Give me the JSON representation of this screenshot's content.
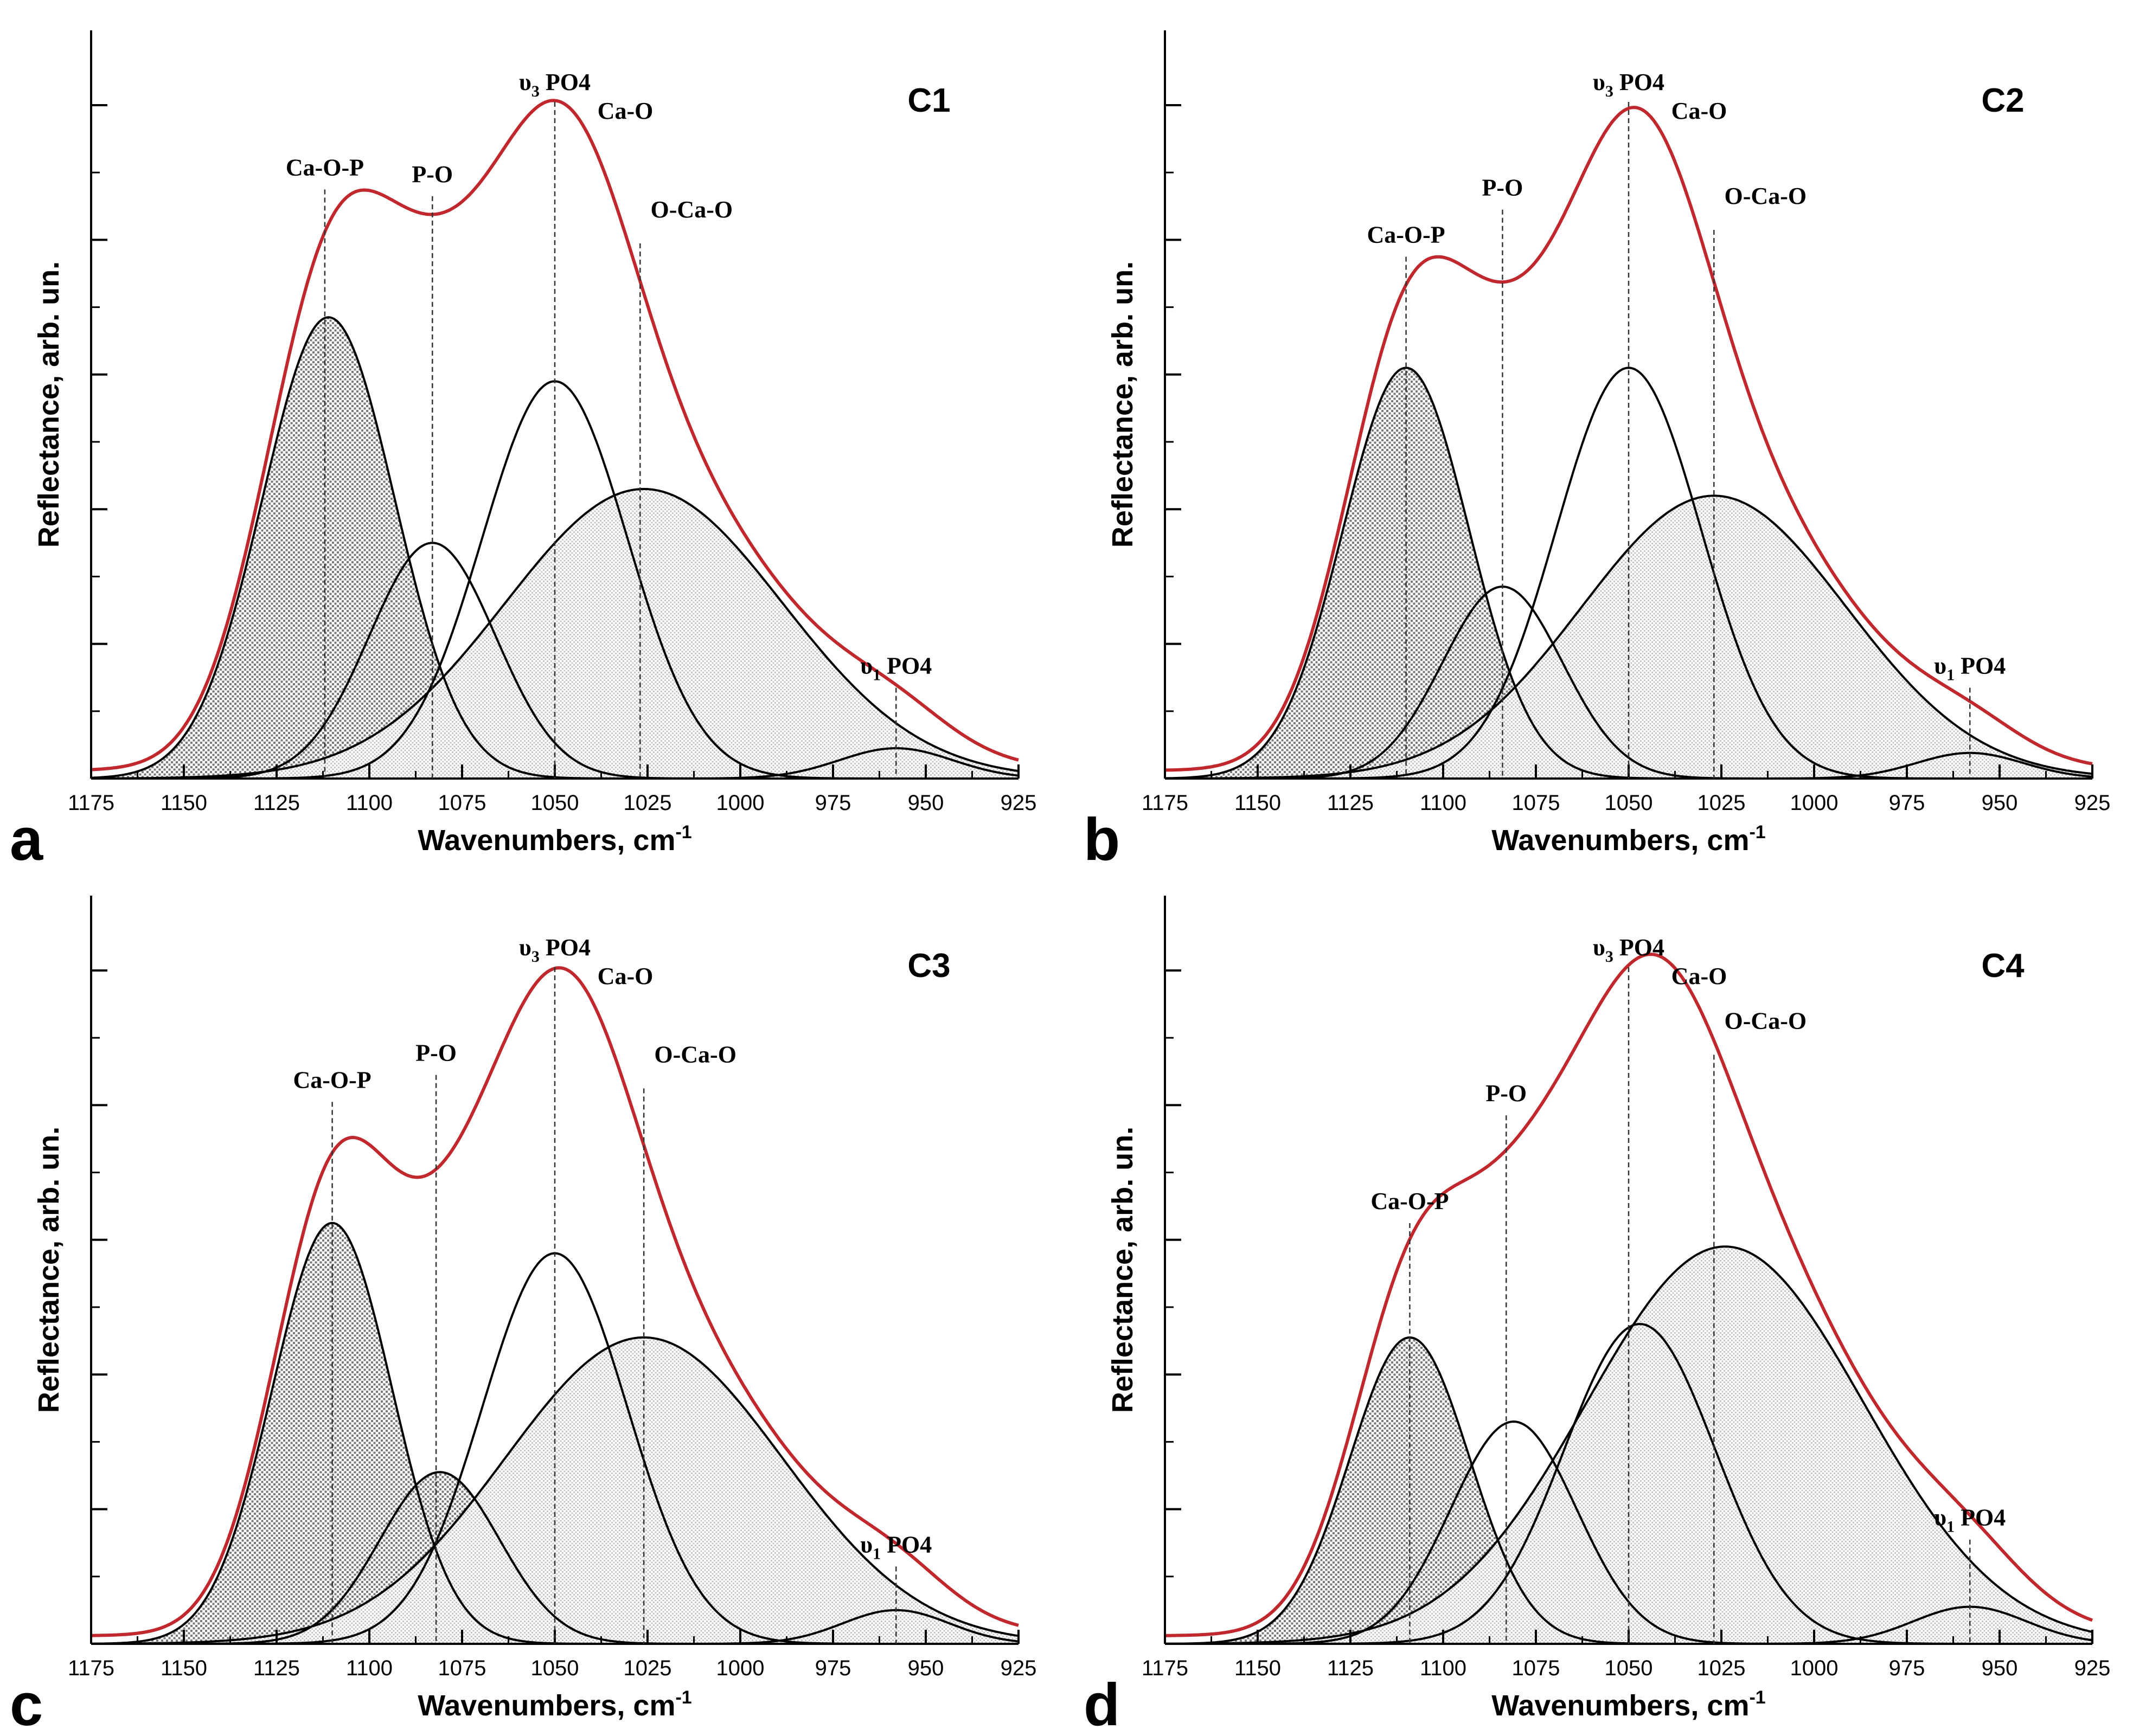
{
  "figure": {
    "background": "#ffffff",
    "envelope_color": "#c0282d",
    "component_color": "#000000",
    "dense_fill": "#8c8c8c",
    "light_fill": "#c8c8c8"
  },
  "chart_data": [
    {
      "type": "line",
      "panel_letter": "a",
      "title": "C1",
      "xlabel": "Wavenumbers, cm",
      "xlabel_sup": "-1",
      "ylabel": "Reflectance, arb. un.",
      "xlim": [
        1175,
        925
      ],
      "ylim": [
        0,
        1.0
      ],
      "x_ticks": [
        1175,
        1150,
        1125,
        1100,
        1075,
        1050,
        1025,
        1000,
        975,
        950,
        925
      ],
      "x_tick_labels": [
        "1175",
        "1150",
        "1125",
        "1100",
        "1075",
        "1050",
        "1025",
        "1000",
        "975",
        "950",
        "925"
      ],
      "y_ticks": [
        0.2,
        0.4,
        0.6,
        0.8,
        1.0
      ],
      "components": [
        {
          "name": "Ca-O-P",
          "center": 1111,
          "height": 0.685,
          "fwhm": 42,
          "fill": "dense"
        },
        {
          "name": "P-O",
          "center": 1083,
          "height": 0.35,
          "fwhm": 40,
          "fill": "none"
        },
        {
          "name": "Ca-O",
          "center": 1050,
          "height": 0.59,
          "fwhm": 46,
          "fill": "none"
        },
        {
          "name": "O-Ca-O",
          "center": 1026,
          "height": 0.43,
          "fwhm": 88,
          "fill": "light"
        },
        {
          "name": "υ1 PO4",
          "center": 958,
          "height": 0.045,
          "fwhm": 36,
          "fill": "light"
        }
      ],
      "envelope": "sum",
      "annotations": [
        {
          "text": "Ca-O-P",
          "sub": "",
          "tail": "",
          "x": 1112,
          "line_top": 0.87
        },
        {
          "text": "P-O",
          "sub": "",
          "tail": "",
          "x": 1083,
          "line_top": 0.86
        },
        {
          "text": "υ",
          "sub": "3",
          "tail": " PO4",
          "x": 1050,
          "line_top": 1.0
        },
        {
          "text": "Ca-O",
          "sub": "",
          "tail": "",
          "x": 1050,
          "line_top": null
        },
        {
          "text": "O-Ca-O",
          "sub": "",
          "tail": "",
          "x": 1027,
          "line_top": 0.79
        },
        {
          "text": "υ",
          "sub": "1",
          "tail": " PO4",
          "x": 958,
          "line_top": 0.13
        }
      ]
    },
    {
      "type": "line",
      "panel_letter": "b",
      "title": "C2",
      "xlabel": "Wavenumbers, cm",
      "xlabel_sup": "-1",
      "ylabel": "Reflectance, arb. un.",
      "xlim": [
        1175,
        925
      ],
      "ylim": [
        0,
        1.0
      ],
      "x_ticks": [
        1175,
        1150,
        1125,
        1100,
        1075,
        1050,
        1025,
        1000,
        975,
        950,
        925
      ],
      "x_tick_labels": [
        "1175",
        "1150",
        "1125",
        "1100",
        "1075",
        "1050",
        "1025",
        "1000",
        "975",
        "950",
        "925"
      ],
      "y_ticks": [
        0.2,
        0.4,
        0.6,
        0.8,
        1.0
      ],
      "components": [
        {
          "name": "Ca-O-P",
          "center": 1110,
          "height": 0.61,
          "fwhm": 40,
          "fill": "dense"
        },
        {
          "name": "P-O",
          "center": 1084,
          "height": 0.285,
          "fwhm": 38,
          "fill": "none"
        },
        {
          "name": "Ca-O",
          "center": 1050,
          "height": 0.61,
          "fwhm": 46,
          "fill": "none"
        },
        {
          "name": "O-Ca-O",
          "center": 1027,
          "height": 0.42,
          "fwhm": 84,
          "fill": "light"
        },
        {
          "name": "υ1 PO4",
          "center": 958,
          "height": 0.038,
          "fwhm": 34,
          "fill": "light"
        }
      ],
      "envelope": "sum",
      "annotations": [
        {
          "text": "Ca-O-P",
          "sub": "",
          "tail": "",
          "x": 1110,
          "line_top": 0.77
        },
        {
          "text": "P-O",
          "sub": "",
          "tail": "",
          "x": 1084,
          "line_top": 0.84
        },
        {
          "text": "υ",
          "sub": "3",
          "tail": " PO4",
          "x": 1050,
          "line_top": 1.0
        },
        {
          "text": "Ca-O",
          "sub": "",
          "tail": "",
          "x": 1050,
          "line_top": null
        },
        {
          "text": "O-Ca-O",
          "sub": "",
          "tail": "",
          "x": 1027,
          "line_top": 0.81
        },
        {
          "text": "υ",
          "sub": "1",
          "tail": " PO4",
          "x": 958,
          "line_top": 0.13
        }
      ]
    },
    {
      "type": "line",
      "panel_letter": "c",
      "title": "C3",
      "xlabel": "Wavenumbers, cm",
      "xlabel_sup": "-1",
      "ylabel": "Reflectance, arb. un.",
      "xlim": [
        1175,
        925
      ],
      "ylim": [
        0,
        1.0
      ],
      "x_ticks": [
        1175,
        1150,
        1125,
        1100,
        1075,
        1050,
        1025,
        1000,
        975,
        950,
        925
      ],
      "x_tick_labels": [
        "1175",
        "1150",
        "1125",
        "1100",
        "1075",
        "1050",
        "1025",
        "1000",
        "975",
        "950",
        "925"
      ],
      "y_ticks": [
        0.2,
        0.4,
        0.6,
        0.8,
        1.0
      ],
      "components": [
        {
          "name": "Ca-O-P",
          "center": 1110,
          "height": 0.625,
          "fwhm": 38,
          "fill": "dense"
        },
        {
          "name": "P-O",
          "center": 1081,
          "height": 0.255,
          "fwhm": 38,
          "fill": "dense"
        },
        {
          "name": "Ca-O",
          "center": 1050,
          "height": 0.58,
          "fwhm": 46,
          "fill": "none"
        },
        {
          "name": "O-Ca-O",
          "center": 1026,
          "height": 0.455,
          "fwhm": 88,
          "fill": "light"
        },
        {
          "name": "υ1 PO4",
          "center": 958,
          "height": 0.05,
          "fwhm": 34,
          "fill": "light"
        }
      ],
      "envelope": "sum",
      "annotations": [
        {
          "text": "Ca-O-P",
          "sub": "",
          "tail": "",
          "x": 1110,
          "line_top": 0.8
        },
        {
          "text": "P-O",
          "sub": "",
          "tail": "",
          "x": 1082,
          "line_top": 0.84
        },
        {
          "text": "υ",
          "sub": "3",
          "tail": " PO4",
          "x": 1050,
          "line_top": 1.0
        },
        {
          "text": "Ca-O",
          "sub": "",
          "tail": "",
          "x": 1050,
          "line_top": null
        },
        {
          "text": "O-Ca-O",
          "sub": "",
          "tail": "",
          "x": 1026,
          "line_top": 0.82
        },
        {
          "text": "υ",
          "sub": "1",
          "tail": " PO4",
          "x": 958,
          "line_top": 0.11
        }
      ]
    },
    {
      "type": "line",
      "panel_letter": "d",
      "title": "C4",
      "xlabel": "Wavenumbers, cm",
      "xlabel_sup": "-1",
      "ylabel": "Reflectance, arb. un.",
      "xlim": [
        1175,
        925
      ],
      "ylim": [
        0,
        1.0
      ],
      "x_ticks": [
        1175,
        1150,
        1125,
        1100,
        1075,
        1050,
        1025,
        1000,
        975,
        950,
        925
      ],
      "x_tick_labels": [
        "1175",
        "1150",
        "1125",
        "1100",
        "1075",
        "1050",
        "1025",
        "1000",
        "975",
        "950",
        "925"
      ],
      "y_ticks": [
        0.2,
        0.4,
        0.6,
        0.8,
        1.0
      ],
      "components": [
        {
          "name": "Ca-O-P",
          "center": 1109,
          "height": 0.455,
          "fwhm": 38,
          "fill": "dense"
        },
        {
          "name": "P-O",
          "center": 1081,
          "height": 0.33,
          "fwhm": 40,
          "fill": "none"
        },
        {
          "name": "Ca-O",
          "center": 1047,
          "height": 0.475,
          "fwhm": 48,
          "fill": "none"
        },
        {
          "name": "O-Ca-O",
          "center": 1024,
          "height": 0.59,
          "fwhm": 88,
          "fill": "light"
        },
        {
          "name": "υ1 PO4",
          "center": 958,
          "height": 0.055,
          "fwhm": 36,
          "fill": "light"
        }
      ],
      "envelope": "sum",
      "annotations": [
        {
          "text": "Ca-O-P",
          "sub": "",
          "tail": "",
          "x": 1109,
          "line_top": 0.62
        },
        {
          "text": "P-O",
          "sub": "",
          "tail": "",
          "x": 1083,
          "line_top": 0.78
        },
        {
          "text": "υ",
          "sub": "3",
          "tail": " PO4",
          "x": 1050,
          "line_top": 1.0
        },
        {
          "text": "Ca-O",
          "sub": "",
          "tail": "",
          "x": 1050,
          "line_top": null
        },
        {
          "text": "O-Ca-O",
          "sub": "",
          "tail": "",
          "x": 1027,
          "line_top": 0.87
        },
        {
          "text": "υ",
          "sub": "1",
          "tail": " PO4",
          "x": 958,
          "line_top": 0.15
        }
      ]
    }
  ]
}
